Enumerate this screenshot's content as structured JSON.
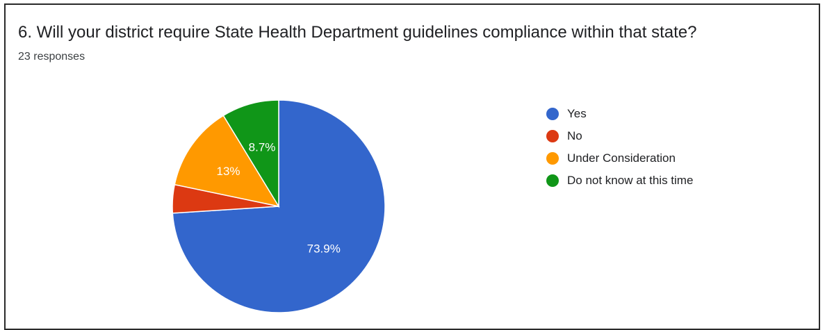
{
  "question": {
    "title": "6. Will your district require State Health Department guidelines compliance within that state?",
    "responses": "23 responses"
  },
  "chart_data": {
    "type": "pie",
    "categories": [
      "Yes",
      "No",
      "Under Consideration",
      "Do not know at this time"
    ],
    "values": [
      73.9,
      4.3,
      13,
      8.7
    ],
    "data_labels": [
      "73.9%",
      "",
      "13%",
      "8.7%"
    ],
    "colors": [
      "#3366cc",
      "#dc3912",
      "#ff9900",
      "#109618"
    ],
    "legend_position": "right"
  }
}
